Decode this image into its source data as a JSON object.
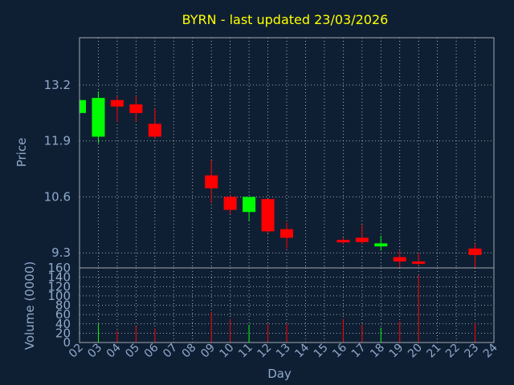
{
  "colors": {
    "background": "#0f1f33",
    "title": "#ffff00",
    "axis_text": "#8fa9cc",
    "grid": "#c8d0d8",
    "frame": "#a0a8b0",
    "up": "#00ff00",
    "down": "#ff0000"
  },
  "chart_data": [
    {
      "type": "candlestick",
      "title": "BYRN - last updated 23/03/2026",
      "ylabel": "Price",
      "y_ticks": [
        9.3,
        10.6,
        11.9,
        13.2
      ],
      "ylim": [
        8.95,
        14.3
      ],
      "x_ticks": [
        "02",
        "03",
        "04",
        "05",
        "06",
        "07",
        "08",
        "09",
        "10",
        "11",
        "12",
        "13",
        "14",
        "15",
        "16",
        "17",
        "18",
        "19",
        "20",
        "21",
        "22",
        "23",
        "24"
      ],
      "grid": true,
      "candles": [
        {
          "x": 2,
          "open": 12.55,
          "high": 12.95,
          "low": 12.55,
          "close": 12.85
        },
        {
          "x": 3,
          "open": 12.0,
          "high": 13.05,
          "low": 11.85,
          "close": 12.9
        },
        {
          "x": 4,
          "open": 12.85,
          "high": 12.95,
          "low": 12.35,
          "close": 12.7
        },
        {
          "x": 5,
          "open": 12.75,
          "high": 12.95,
          "low": 12.35,
          "close": 12.55
        },
        {
          "x": 6,
          "open": 12.3,
          "high": 12.65,
          "low": 11.95,
          "close": 12.0
        },
        {
          "x": 9,
          "open": 11.1,
          "high": 11.45,
          "low": 10.45,
          "close": 10.8
        },
        {
          "x": 10,
          "open": 10.6,
          "high": 10.65,
          "low": 10.2,
          "close": 10.3
        },
        {
          "x": 11,
          "open": 10.25,
          "high": 10.6,
          "low": 10.05,
          "close": 10.6
        },
        {
          "x": 12,
          "open": 10.55,
          "high": 10.55,
          "low": 9.75,
          "close": 9.8
        },
        {
          "x": 13,
          "open": 9.85,
          "high": 10.0,
          "low": 9.4,
          "close": 9.65
        },
        {
          "x": 16,
          "open": 9.6,
          "high": 9.65,
          "low": 9.5,
          "close": 9.55
        },
        {
          "x": 17,
          "open": 9.65,
          "high": 9.95,
          "low": 9.5,
          "close": 9.55
        },
        {
          "x": 18,
          "open": 9.45,
          "high": 9.7,
          "low": 9.35,
          "close": 9.52
        },
        {
          "x": 19,
          "open": 9.2,
          "high": 9.35,
          "low": 8.95,
          "close": 9.1
        },
        {
          "x": 20,
          "open": 9.1,
          "high": 9.3,
          "low": 9.0,
          "close": 9.05
        },
        {
          "x": 23,
          "open": 9.4,
          "high": 9.5,
          "low": 8.95,
          "close": 9.25
        }
      ]
    },
    {
      "type": "bar",
      "ylabel": "Volume (0000)",
      "xlabel": "Day",
      "y_ticks": [
        0,
        20,
        40,
        60,
        80,
        100,
        120,
        140,
        160
      ],
      "ylim": [
        0,
        160
      ],
      "x_ticks": [
        "02",
        "03",
        "04",
        "05",
        "06",
        "07",
        "08",
        "09",
        "10",
        "11",
        "12",
        "13",
        "14",
        "15",
        "16",
        "17",
        "18",
        "19",
        "20",
        "21",
        "22",
        "23",
        "24"
      ],
      "grid": true,
      "bars": [
        {
          "x": 3,
          "value": 40,
          "color": "up"
        },
        {
          "x": 4,
          "value": 25,
          "color": "down"
        },
        {
          "x": 5,
          "value": 35,
          "color": "down"
        },
        {
          "x": 6,
          "value": 30,
          "color": "down"
        },
        {
          "x": 9,
          "value": 65,
          "color": "down"
        },
        {
          "x": 10,
          "value": 50,
          "color": "down"
        },
        {
          "x": 11,
          "value": 38,
          "color": "up"
        },
        {
          "x": 12,
          "value": 40,
          "color": "down"
        },
        {
          "x": 13,
          "value": 40,
          "color": "down"
        },
        {
          "x": 16,
          "value": 50,
          "color": "down"
        },
        {
          "x": 17,
          "value": 38,
          "color": "down"
        },
        {
          "x": 18,
          "value": 32,
          "color": "up"
        },
        {
          "x": 19,
          "value": 45,
          "color": "down"
        },
        {
          "x": 20,
          "value": 145,
          "color": "down"
        },
        {
          "x": 23,
          "value": 42,
          "color": "down"
        }
      ]
    }
  ]
}
